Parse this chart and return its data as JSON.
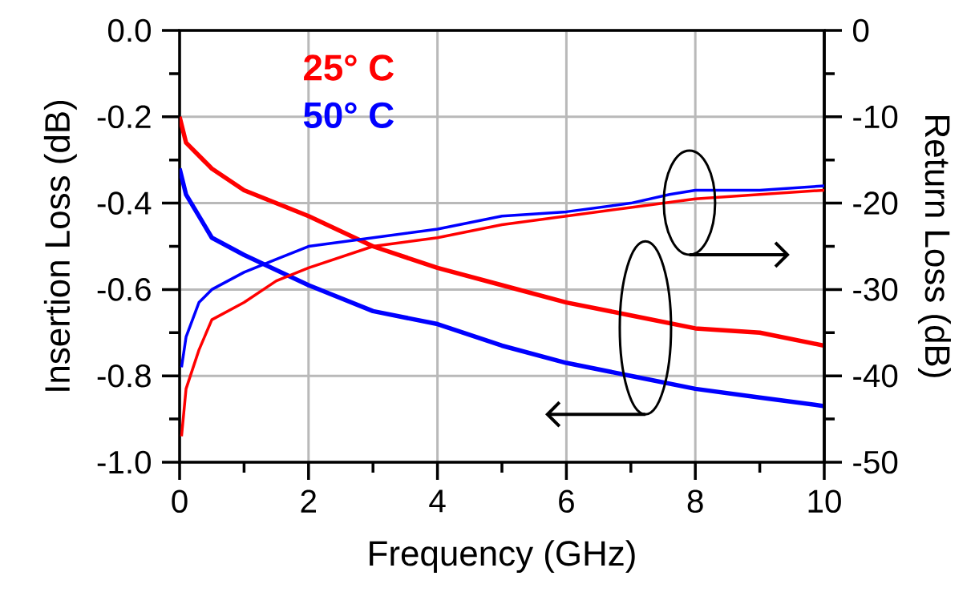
{
  "chart_data": {
    "type": "line",
    "xlabel": "Frequency (GHz)",
    "ylabel": "Insertion Loss (dB)",
    "y2label": "Return Loss (dB)",
    "xlim": [
      0,
      10
    ],
    "xticks": [
      0,
      2,
      4,
      6,
      8,
      10
    ],
    "ylim": [
      -1.0,
      0.0
    ],
    "yticks": [
      {
        "value": -1.0,
        "label": "-1.0"
      },
      {
        "value": -0.8,
        "label": "-0.8"
      },
      {
        "value": -0.6,
        "label": "-0.6"
      },
      {
        "value": -0.4,
        "label": "-0.4"
      },
      {
        "value": -0.2,
        "label": "-0.2"
      },
      {
        "value": 0.0,
        "label": "0.0"
      }
    ],
    "y2lim": [
      -50,
      0
    ],
    "y2ticks": [
      -50,
      -40,
      -30,
      -20,
      -10,
      0
    ],
    "grid": true,
    "series": [
      {
        "name": "25° C",
        "color": "#ff0000",
        "x": [
          0,
          0.1,
          0.5,
          1,
          2,
          3,
          4,
          5,
          6,
          7,
          8,
          9,
          10
        ],
        "values": [
          -0.2,
          -0.26,
          -0.32,
          -0.37,
          -0.43,
          -0.5,
          -0.55,
          -0.59,
          -0.63,
          -0.66,
          -0.69,
          -0.7,
          -0.73
        ]
      },
      {
        "name": "50° C",
        "color": "#0000ff",
        "x": [
          0,
          0.1,
          0.5,
          1,
          2,
          3,
          4,
          5,
          6,
          7,
          8,
          9,
          10
        ],
        "values": [
          -0.32,
          -0.38,
          -0.48,
          -0.52,
          -0.59,
          -0.65,
          -0.68,
          -0.73,
          -0.77,
          -0.8,
          -0.83,
          -0.85,
          -0.87
        ]
      },
      {
        "color": "#ff0000",
        "axis": "y2",
        "x": [
          0.03,
          0.1,
          0.3,
          0.5,
          1,
          1.5,
          2,
          3,
          4,
          5,
          6,
          7,
          8,
          9,
          10
        ],
        "values": [
          -47,
          -41.5,
          -37,
          -33.5,
          -31.5,
          -29,
          -27.5,
          -25,
          -24,
          -22.5,
          -21.5,
          -20.5,
          -19.5,
          -19,
          -18.5
        ]
      },
      {
        "color": "#0000ff",
        "axis": "y2",
        "x": [
          0.03,
          0.1,
          0.3,
          0.5,
          1,
          1.5,
          2,
          3,
          4,
          5,
          6,
          7,
          7.6,
          8,
          9,
          10
        ],
        "values": [
          -39,
          -35.5,
          -31.5,
          -30,
          -28,
          -26.5,
          -25,
          -24,
          -23,
          -21.5,
          -21,
          -20,
          -19,
          -18.5,
          -18.5,
          -18
        ]
      }
    ]
  }
}
